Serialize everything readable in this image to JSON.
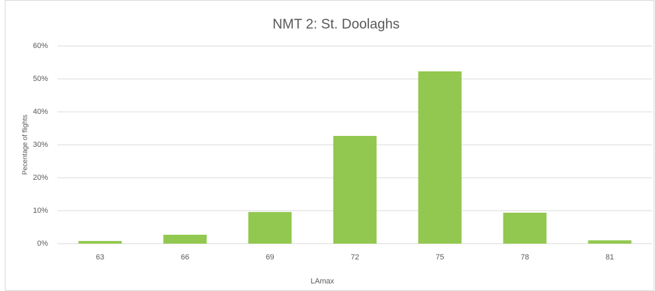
{
  "chart_data": {
    "type": "bar",
    "title": "NMT 2: St. Doolaghs",
    "x_label": "LAmax",
    "y_label": "Pecentage of flights",
    "categories": [
      "63",
      "66",
      "69",
      "72",
      "75",
      "78",
      "81"
    ],
    "values": [
      0.8,
      2.7,
      9.6,
      32.7,
      52.3,
      9.4,
      1.0
    ],
    "color": "#92c84f",
    "ylim": [
      0,
      60
    ],
    "yticks": [
      {
        "value": 0,
        "label": "0%"
      },
      {
        "value": 10,
        "label": "10%"
      },
      {
        "value": 20,
        "label": "20%"
      },
      {
        "value": 30,
        "label": "30%"
      },
      {
        "value": 40,
        "label": "40%"
      },
      {
        "value": 50,
        "label": "50%"
      },
      {
        "value": 60,
        "label": "60%"
      }
    ],
    "grid": true
  }
}
